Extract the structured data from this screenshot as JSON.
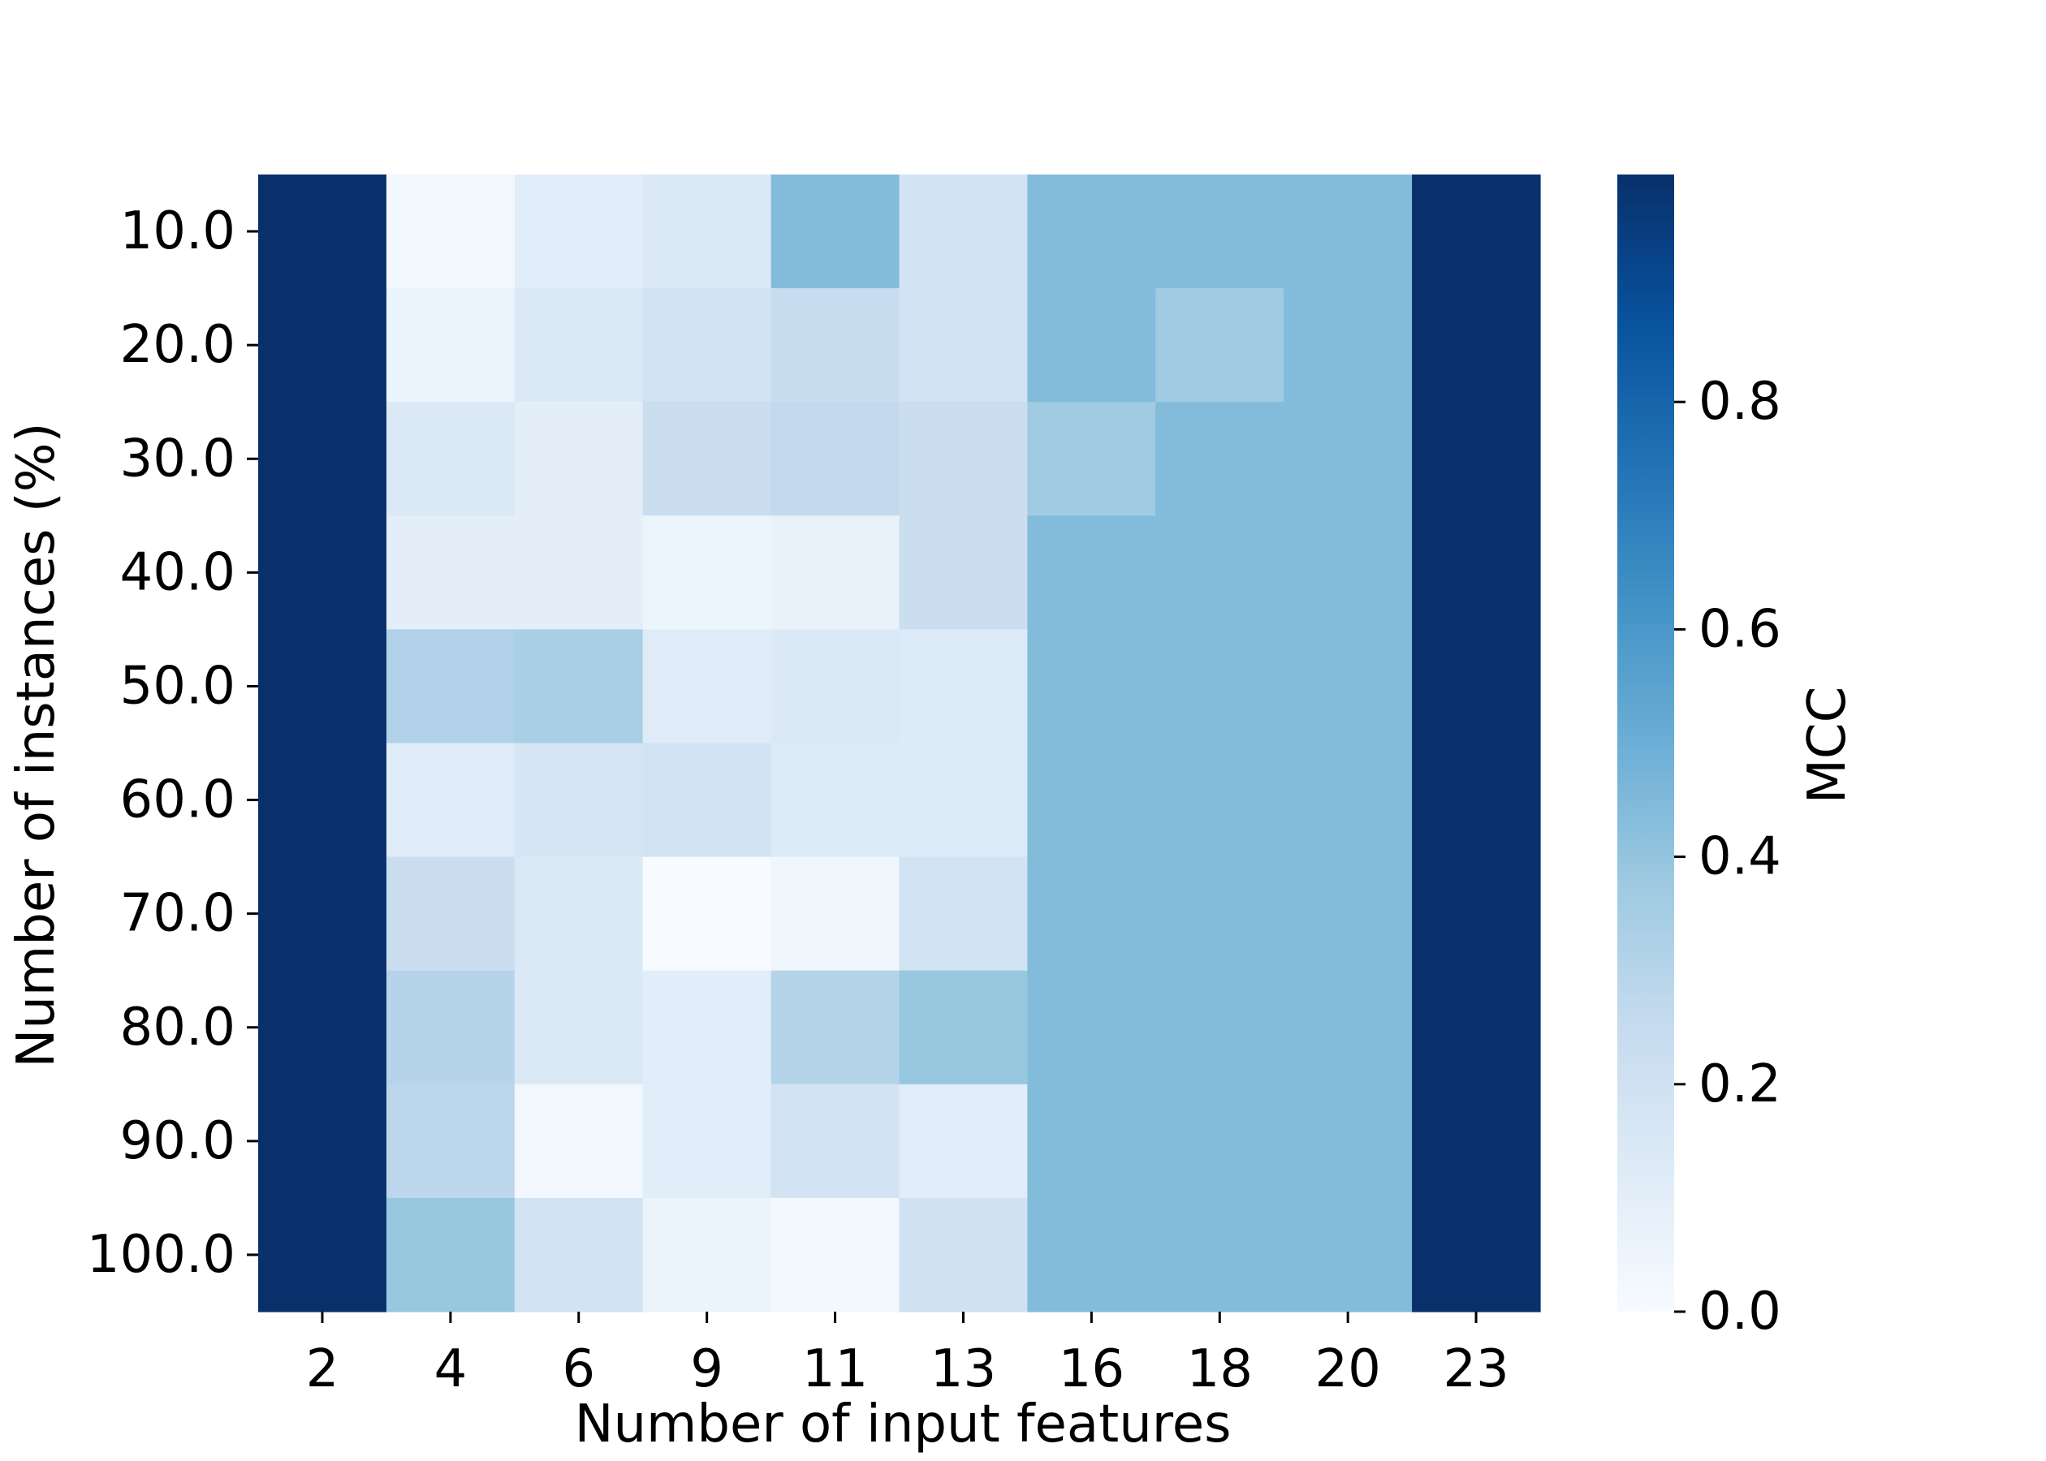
{
  "chart_data": {
    "type": "heatmap",
    "xlabel": "Number of input features",
    "ylabel": "Number of instances (%)",
    "x_categories": [
      "2",
      "4",
      "6",
      "9",
      "11",
      "13",
      "16",
      "18",
      "20",
      "23"
    ],
    "y_categories": [
      "10.0",
      "20.0",
      "30.0",
      "40.0",
      "50.0",
      "60.0",
      "70.0",
      "80.0",
      "90.0",
      "100.0"
    ],
    "values": [
      [
        1.0,
        0.02,
        0.11,
        0.14,
        0.44,
        0.19,
        0.44,
        0.44,
        0.44,
        1.0
      ],
      [
        1.0,
        0.06,
        0.14,
        0.19,
        0.24,
        0.19,
        0.44,
        0.37,
        0.44,
        1.0
      ],
      [
        1.0,
        0.14,
        0.1,
        0.23,
        0.26,
        0.23,
        0.37,
        0.44,
        0.44,
        1.0
      ],
      [
        1.0,
        0.1,
        0.1,
        0.05,
        0.07,
        0.23,
        0.44,
        0.44,
        0.44,
        1.0
      ],
      [
        1.0,
        0.32,
        0.34,
        0.12,
        0.14,
        0.13,
        0.44,
        0.44,
        0.44,
        1.0
      ],
      [
        1.0,
        0.12,
        0.17,
        0.19,
        0.13,
        0.13,
        0.44,
        0.44,
        0.44,
        1.0
      ],
      [
        1.0,
        0.23,
        0.14,
        0.0,
        0.04,
        0.19,
        0.44,
        0.44,
        0.44,
        1.0
      ],
      [
        1.0,
        0.3,
        0.14,
        0.11,
        0.3,
        0.39,
        0.44,
        0.44,
        0.44,
        1.0
      ],
      [
        1.0,
        0.28,
        0.03,
        0.11,
        0.19,
        0.11,
        0.44,
        0.44,
        0.44,
        1.0
      ],
      [
        1.0,
        0.39,
        0.19,
        0.06,
        0.02,
        0.2,
        0.44,
        0.44,
        0.44,
        1.0
      ]
    ],
    "colormap": "Blues",
    "color_scale": {
      "min": 0.0,
      "max": 1.0
    },
    "colorbar": {
      "label": "MCC",
      "ticks": [
        0.0,
        0.2,
        0.4,
        0.6,
        0.8
      ],
      "tick_labels": [
        "0.0",
        "0.2",
        "0.4",
        "0.6",
        "0.8"
      ]
    },
    "grid": false
  },
  "colormap_stops": [
    "#f7fbff",
    "#deebf7",
    "#c6dbef",
    "#9ecae1",
    "#6baed6",
    "#4292c6",
    "#2171b5",
    "#08519c",
    "#08306b"
  ]
}
